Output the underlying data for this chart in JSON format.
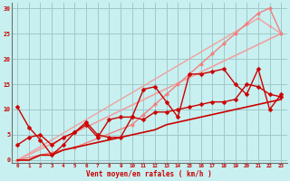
{
  "background_color": "#c8f0f0",
  "grid_color": "#a0c8c8",
  "xlabel": "#cc0000",
  "ylabel_color": "#cc0000",
  "xlabel_text": "Vent moyen/en rafales ( km/h )",
  "ylim": [
    -0.5,
    31
  ],
  "xlim": [
    -0.5,
    23.5
  ],
  "yticks": [
    0,
    5,
    10,
    15,
    20,
    25,
    30
  ],
  "xticks": [
    0,
    1,
    2,
    3,
    4,
    5,
    6,
    7,
    8,
    9,
    10,
    11,
    12,
    13,
    14,
    15,
    16,
    17,
    18,
    19,
    20,
    21,
    22,
    23
  ],
  "series": [
    {
      "x": [
        0,
        23
      ],
      "y": [
        0,
        25
      ],
      "color": "#f0a0a0",
      "marker": "None",
      "markersize": 0,
      "linewidth": 1.2,
      "linestyle": "-"
    },
    {
      "x": [
        0,
        21,
        22,
        23
      ],
      "y": [
        0,
        28,
        26.5,
        25
      ],
      "color": "#f0a0a0",
      "marker": "o",
      "markersize": 2.0,
      "linewidth": 1.0,
      "linestyle": "-"
    },
    {
      "x": [
        0,
        5,
        10,
        11,
        12,
        13,
        14,
        15,
        16,
        17,
        18,
        19,
        20,
        21,
        22,
        23
      ],
      "y": [
        0,
        2.5,
        7,
        9,
        11,
        13,
        15,
        17,
        19,
        21,
        23,
        25,
        27,
        29,
        30,
        25
      ],
      "color": "#f08080",
      "marker": "o",
      "markersize": 2.5,
      "linewidth": 1.0,
      "linestyle": "-"
    },
    {
      "x": [
        0,
        1,
        2,
        3,
        4,
        5,
        6,
        7,
        8,
        9,
        10,
        11,
        12,
        13,
        14,
        15,
        16,
        17,
        18,
        19,
        20,
        21,
        22,
        23
      ],
      "y": [
        3,
        4.5,
        5,
        3,
        4.5,
        5.5,
        7,
        4.5,
        8,
        8.5,
        8.5,
        14,
        14.5,
        11.5,
        8.5,
        17,
        17,
        17.5,
        18,
        15,
        13,
        18,
        10,
        13
      ],
      "color": "#cc0000",
      "marker": "D",
      "markersize": 2.5,
      "linewidth": 1.0,
      "linestyle": "-"
    },
    {
      "x": [
        0,
        1,
        2,
        3,
        4,
        5,
        6,
        7,
        8,
        9,
        10,
        11,
        12,
        13,
        14,
        15,
        16,
        17,
        18,
        19,
        20,
        21,
        22,
        23
      ],
      "y": [
        0,
        0,
        1,
        1,
        2,
        2.5,
        3,
        3.5,
        4,
        4.5,
        5,
        5.5,
        6,
        7,
        7.5,
        8,
        8.5,
        9,
        9.5,
        10,
        10.5,
        11,
        11.5,
        12
      ],
      "color": "#cc0000",
      "marker": "None",
      "markersize": 0,
      "linewidth": 1.2,
      "linestyle": "-"
    },
    {
      "x": [
        0,
        1,
        2,
        3,
        4,
        5,
        6,
        7,
        8,
        9,
        10,
        11,
        12,
        13,
        14,
        15,
        16,
        17,
        18,
        19,
        20,
        21,
        22,
        23
      ],
      "y": [
        10.5,
        6.5,
        4,
        1,
        3,
        5.5,
        7.5,
        5,
        4.5,
        4.5,
        8.5,
        8,
        9.5,
        9.5,
        10,
        10.5,
        11,
        11.5,
        11.5,
        12,
        15,
        14.5,
        13,
        12.5
      ],
      "color": "#cc0000",
      "marker": "D",
      "markersize": 2.5,
      "linewidth": 1.0,
      "linestyle": "-"
    }
  ]
}
